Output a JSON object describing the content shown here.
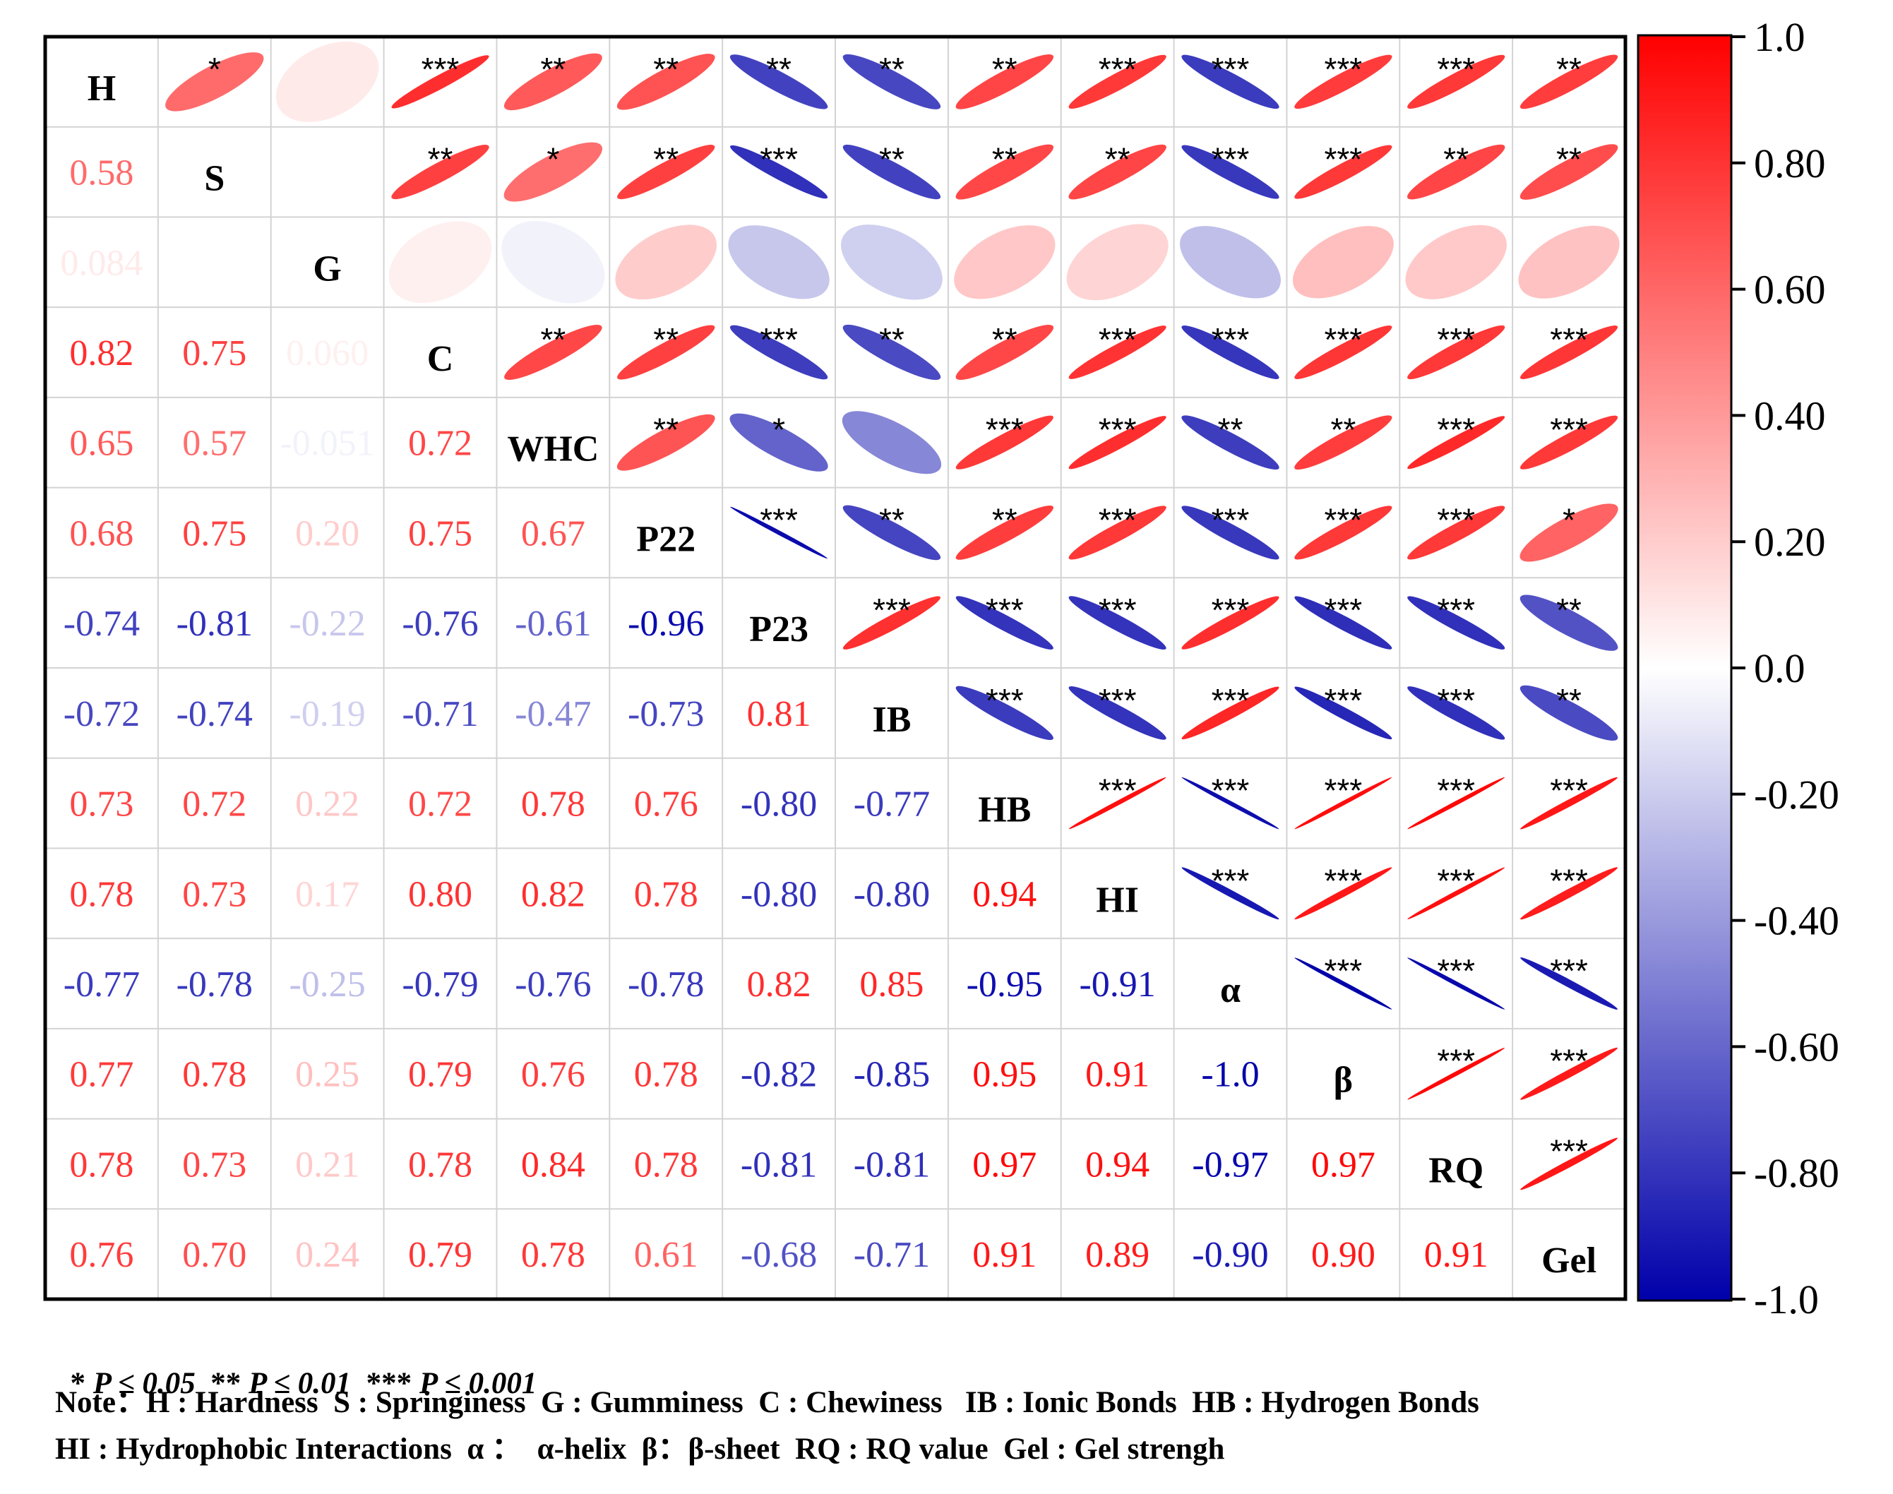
{
  "chart_data": {
    "type": "heatmap",
    "variables": [
      "H",
      "S",
      "G",
      "C",
      "WHC",
      "P22",
      "P23",
      "IB",
      "HB",
      "HI",
      "α",
      "β",
      "RQ",
      "Gel"
    ],
    "lower_labels": [
      [],
      [
        "0.58"
      ],
      [
        "0.084",
        ""
      ],
      [
        "0.82",
        "0.75",
        "0.060"
      ],
      [
        "0.65",
        "0.57",
        "-0.051",
        "0.72"
      ],
      [
        "0.68",
        "0.75",
        "0.20",
        "0.75",
        "0.67"
      ],
      [
        "-0.74",
        "-0.81",
        "-0.22",
        "-0.76",
        "-0.61",
        "-0.96"
      ],
      [
        "-0.72",
        "-0.74",
        "-0.19",
        "-0.71",
        "-0.47",
        "-0.73",
        "0.81"
      ],
      [
        "0.73",
        "0.72",
        "0.22",
        "0.72",
        "0.78",
        "0.76",
        "-0.80",
        "-0.77"
      ],
      [
        "0.78",
        "0.73",
        "0.17",
        "0.80",
        "0.82",
        "0.78",
        "-0.80",
        "-0.80",
        "0.94"
      ],
      [
        "-0.77",
        "-0.78",
        "-0.25",
        "-0.79",
        "-0.76",
        "-0.78",
        "0.82",
        "0.85",
        "-0.95",
        "-0.91"
      ],
      [
        "0.77",
        "0.78",
        "0.25",
        "0.79",
        "0.76",
        "0.78",
        "-0.82",
        "-0.85",
        "0.95",
        "0.91",
        "-1.0"
      ],
      [
        "0.78",
        "0.73",
        "0.21",
        "0.78",
        "0.84",
        "0.78",
        "-0.81",
        "-0.81",
        "0.97",
        "0.94",
        "-0.97",
        "0.97"
      ],
      [
        "0.76",
        "0.70",
        "0.24",
        "0.79",
        "0.78",
        "0.61",
        "-0.68",
        "-0.71",
        "0.91",
        "0.89",
        "-0.90",
        "0.90",
        "0.91"
      ]
    ],
    "matrix": [
      [
        1,
        0.58,
        0.084,
        0.82,
        0.65,
        0.68,
        -0.74,
        -0.72,
        0.73,
        0.78,
        -0.77,
        0.77,
        0.78,
        0.76
      ],
      [
        0.58,
        1,
        0.0,
        0.75,
        0.57,
        0.75,
        -0.81,
        -0.74,
        0.72,
        0.73,
        -0.78,
        0.78,
        0.73,
        0.7
      ],
      [
        0.084,
        0.0,
        1,
        0.06,
        -0.051,
        0.2,
        -0.22,
        -0.19,
        0.22,
        0.17,
        -0.25,
        0.25,
        0.21,
        0.24
      ],
      [
        0.82,
        0.75,
        0.06,
        1,
        0.72,
        0.75,
        -0.76,
        -0.71,
        0.72,
        0.8,
        -0.79,
        0.79,
        0.78,
        0.79
      ],
      [
        0.65,
        0.57,
        -0.051,
        0.72,
        1,
        0.67,
        -0.61,
        -0.47,
        0.78,
        0.82,
        -0.76,
        0.76,
        0.84,
        0.78
      ],
      [
        0.68,
        0.75,
        0.2,
        0.75,
        0.67,
        1,
        -0.96,
        -0.73,
        0.76,
        0.78,
        -0.78,
        0.78,
        0.78,
        0.61
      ],
      [
        -0.74,
        -0.81,
        -0.22,
        -0.76,
        -0.61,
        -0.96,
        1,
        0.81,
        -0.8,
        -0.8,
        0.82,
        -0.82,
        -0.81,
        -0.68
      ],
      [
        -0.72,
        -0.74,
        -0.19,
        -0.71,
        -0.47,
        -0.73,
        0.81,
        1,
        -0.77,
        -0.8,
        0.85,
        -0.85,
        -0.81,
        -0.71
      ],
      [
        0.73,
        0.72,
        0.22,
        0.72,
        0.78,
        0.76,
        -0.8,
        -0.77,
        1,
        0.94,
        -0.95,
        0.95,
        0.97,
        0.91
      ],
      [
        0.78,
        0.73,
        0.17,
        0.8,
        0.82,
        0.78,
        -0.8,
        -0.8,
        0.94,
        1,
        -0.91,
        0.91,
        0.94,
        0.89
      ],
      [
        -0.77,
        -0.78,
        -0.25,
        -0.79,
        -0.76,
        -0.78,
        0.82,
        0.85,
        -0.95,
        -0.91,
        1,
        -1.0,
        -0.97,
        -0.9
      ],
      [
        0.77,
        0.78,
        0.25,
        0.79,
        0.76,
        0.78,
        -0.82,
        -0.85,
        0.95,
        0.91,
        -1.0,
        1,
        0.97,
        0.9
      ],
      [
        0.78,
        0.73,
        0.21,
        0.78,
        0.84,
        0.78,
        -0.81,
        -0.81,
        0.97,
        0.94,
        -0.97,
        0.97,
        1,
        0.91
      ],
      [
        0.76,
        0.7,
        0.24,
        0.79,
        0.78,
        0.61,
        -0.68,
        -0.71,
        0.91,
        0.89,
        -0.9,
        0.9,
        0.91,
        1
      ]
    ],
    "significance": [
      [
        "",
        "*",
        "",
        "***",
        "**",
        "**",
        "**",
        "**",
        "**",
        "***",
        "***",
        "***",
        "***",
        "**"
      ],
      [
        "*",
        "",
        "",
        "**",
        "*",
        "**",
        "***",
        "**",
        "**",
        "**",
        "***",
        "***",
        "**",
        "**"
      ],
      [
        "",
        "",
        "",
        "",
        "",
        "",
        "",
        "",
        "",
        "",
        "",
        "",
        "",
        ""
      ],
      [
        "***",
        "**",
        "",
        "",
        "**",
        "**",
        "***",
        "**",
        "**",
        "***",
        "***",
        "***",
        "***",
        "***"
      ],
      [
        "**",
        "*",
        "",
        "**",
        "",
        "**",
        "*",
        "",
        "***",
        "***",
        "**",
        "**",
        "***",
        "***"
      ],
      [
        "**",
        "**",
        "",
        "**",
        "**",
        "",
        "***",
        "**",
        "**",
        "***",
        "***",
        "***",
        "***",
        "*"
      ],
      [
        "**",
        "***",
        "",
        "***",
        "*",
        "***",
        "",
        "***",
        "***",
        "***",
        "***",
        "***",
        "***",
        "**"
      ],
      [
        "**",
        "**",
        "",
        "**",
        "",
        "**",
        "***",
        "",
        "***",
        "***",
        "***",
        "***",
        "***",
        "**"
      ],
      [
        "**",
        "**",
        "",
        "**",
        "***",
        "**",
        "***",
        "***",
        "",
        "***",
        "***",
        "***",
        "***",
        "***"
      ],
      [
        "***",
        "**",
        "",
        "***",
        "***",
        "***",
        "***",
        "***",
        "***",
        "",
        "***",
        "***",
        "***",
        "***"
      ],
      [
        "***",
        "***",
        "",
        "***",
        "**",
        "***",
        "***",
        "***",
        "***",
        "***",
        "",
        "***",
        "***",
        "***"
      ],
      [
        "***",
        "***",
        "",
        "***",
        "**",
        "***",
        "***",
        "***",
        "***",
        "***",
        "***",
        "",
        "***",
        "***"
      ],
      [
        "***",
        "**",
        "",
        "***",
        "***",
        "***",
        "***",
        "***",
        "***",
        "***",
        "***",
        "***",
        "",
        "***"
      ],
      [
        "**",
        "**",
        "",
        "***",
        "***",
        "*",
        "**",
        "**",
        "***",
        "***",
        "***",
        "***",
        "***",
        ""
      ]
    ],
    "colorbar": {
      "min": -1.0,
      "max": 1.0,
      "ticks": [
        "1.0",
        "0.80",
        "0.60",
        "0.40",
        "0.20",
        "0.0",
        "-0.20",
        "-0.40",
        "-0.60",
        "-0.80",
        "-1.0"
      ],
      "low_color": "#0000aa",
      "mid_color": "#ffffff",
      "high_color": "#ff0000"
    }
  },
  "legend": {
    "sig1_stars": "*",
    "sig1_cond": "P ≤ 0.05",
    "sig2_stars": "**",
    "sig2_cond": "P ≤ 0.01",
    "sig3_stars": "***",
    "sig3_cond": "P ≤ 0.001"
  },
  "notes": {
    "line1": "Note：H : Hardness  S : Springiness  G : Gumminess  C : Chewiness   IB : Ionic Bonds  HB : Hydrogen Bonds",
    "line2": "HI : Hydrophobic Interactions  α ：  α-helix  β：β-sheet  RQ : RQ value  Gel : Gel strengh"
  }
}
